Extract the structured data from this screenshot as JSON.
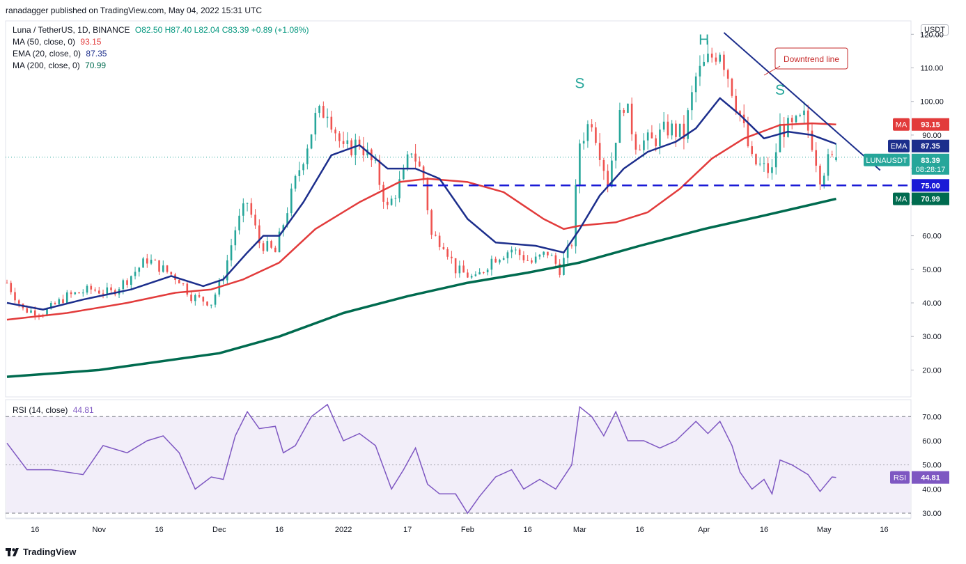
{
  "header": {
    "publisher": "ranadagger published on TradingView.com, May 04, 2022 15:31 UTC"
  },
  "legend": {
    "symbol": "Luna / TetherUS, 1D, BINANCE",
    "ohlc": {
      "o": "O82.50",
      "h": "H87.40",
      "l": "L82.04",
      "c": "C83.39",
      "chg": "+0.89 (+1.08%)"
    },
    "indicators": [
      {
        "label": "MA (50, close, 0)",
        "value": "93.15",
        "color": "#e23b3b"
      },
      {
        "label": "EMA (20, close, 0)",
        "value": "87.35",
        "color": "#1c2e8c"
      },
      {
        "label": "MA (200, close, 0)",
        "value": "70.99",
        "color": "#006b4f"
      }
    ]
  },
  "footer": {
    "brand": "TradingView"
  },
  "colors": {
    "up": "#26a69a",
    "down": "#ef5350",
    "ma50": "#e23b3b",
    "ema20": "#1c2e8c",
    "ma200": "#006b4f",
    "rsi": "#7e57c2",
    "trendline": "#1c2e8c",
    "support": "#1a1ad6"
  },
  "chart_data": [
    {
      "type": "candlestick",
      "title": "Luna / TetherUS, 1D, BINANCE",
      "unit": "USDT",
      "ylim": [
        12,
        124
      ],
      "y_ticks": [
        "20.00",
        "30.00",
        "40.00",
        "50.00",
        "60.00",
        "70.00",
        "80.00",
        "90.00",
        "100.00",
        "110.00",
        "120.00"
      ],
      "x_ticks": [
        "16",
        "Nov",
        "16",
        "Dec",
        "16",
        "2022",
        "17",
        "Feb",
        "16",
        "Mar",
        "16",
        "Apr",
        "16",
        "May",
        "16"
      ],
      "x_tick_dates": [
        "2021-10-16",
        "2021-11-01",
        "2021-11-16",
        "2021-12-01",
        "2021-12-16",
        "2022-01-01",
        "2022-01-17",
        "2022-02-01",
        "2022-02-16",
        "2022-03-01",
        "2022-03-16",
        "2022-04-01",
        "2022-04-16",
        "2022-05-01",
        "2022-05-16"
      ],
      "date_range": [
        "2021-10-09",
        "2022-05-22"
      ],
      "ohlc_anchors_close": [
        [
          "2021-10-09",
          46
        ],
        [
          "2021-10-13",
          38
        ],
        [
          "2021-10-18",
          37
        ],
        [
          "2021-10-24",
          42
        ],
        [
          "2021-10-30",
          44
        ],
        [
          "2021-11-04",
          43
        ],
        [
          "2021-11-08",
          47
        ],
        [
          "2021-11-13",
          53
        ],
        [
          "2021-11-17",
          50
        ],
        [
          "2021-11-21",
          47
        ],
        [
          "2021-11-24",
          42
        ],
        [
          "2021-11-29",
          40
        ],
        [
          "2021-12-02",
          48
        ],
        [
          "2021-12-05",
          62
        ],
        [
          "2021-12-08",
          70
        ],
        [
          "2021-12-11",
          58
        ],
        [
          "2021-12-15",
          55
        ],
        [
          "2021-12-18",
          68
        ],
        [
          "2021-12-21",
          80
        ],
        [
          "2021-12-25",
          95
        ],
        [
          "2021-12-28",
          98
        ],
        [
          "2022-01-01",
          85
        ],
        [
          "2022-01-05",
          88
        ],
        [
          "2022-01-09",
          80
        ],
        [
          "2022-01-12",
          68
        ],
        [
          "2022-01-16",
          78
        ],
        [
          "2022-01-18",
          86
        ],
        [
          "2022-01-21",
          77
        ],
        [
          "2022-01-23",
          60
        ],
        [
          "2022-01-26",
          58
        ],
        [
          "2022-01-29",
          50
        ],
        [
          "2022-02-03",
          47
        ],
        [
          "2022-02-07",
          53
        ],
        [
          "2022-02-12",
          56
        ],
        [
          "2022-02-17",
          52
        ],
        [
          "2022-02-21",
          55
        ],
        [
          "2022-02-24",
          50
        ],
        [
          "2022-02-27",
          58
        ],
        [
          "2022-03-01",
          88
        ],
        [
          "2022-03-04",
          95
        ],
        [
          "2022-03-08",
          76
        ],
        [
          "2022-03-10",
          90
        ],
        [
          "2022-03-12",
          100
        ],
        [
          "2022-03-15",
          88
        ],
        [
          "2022-03-19",
          88
        ],
        [
          "2022-03-23",
          92
        ],
        [
          "2022-03-27",
          90
        ],
        [
          "2022-03-30",
          107
        ],
        [
          "2022-04-02",
          112
        ],
        [
          "2022-04-05",
          116
        ],
        [
          "2022-04-08",
          104
        ],
        [
          "2022-04-10",
          96
        ],
        [
          "2022-04-13",
          82
        ],
        [
          "2022-04-16",
          80
        ],
        [
          "2022-04-18",
          79
        ],
        [
          "2022-04-20",
          92
        ],
        [
          "2022-04-23",
          92
        ],
        [
          "2022-04-26",
          95
        ],
        [
          "2022-04-28",
          88
        ],
        [
          "2022-04-30",
          78
        ],
        [
          "2022-05-02",
          82
        ],
        [
          "2022-05-04",
          83.39
        ]
      ],
      "series": [
        {
          "name": "MA (50, close, 0)",
          "last": 93.15,
          "points": [
            [
              "2021-10-09",
              35
            ],
            [
              "2021-10-24",
              37
            ],
            [
              "2021-11-08",
              40
            ],
            [
              "2021-11-20",
              43
            ],
            [
              "2021-11-29",
              44
            ],
            [
              "2021-12-07",
              47
            ],
            [
              "2021-12-16",
              52
            ],
            [
              "2021-12-25",
              62
            ],
            [
              "2022-01-05",
              70
            ],
            [
              "2022-01-15",
              76
            ],
            [
              "2022-01-22",
              77
            ],
            [
              "2022-02-01",
              76
            ],
            [
              "2022-02-10",
              73
            ],
            [
              "2022-02-20",
              65
            ],
            [
              "2022-02-25",
              62
            ],
            [
              "2022-03-01",
              63
            ],
            [
              "2022-03-10",
              64
            ],
            [
              "2022-03-18",
              67
            ],
            [
              "2022-03-26",
              74
            ],
            [
              "2022-04-03",
              83
            ],
            [
              "2022-04-11",
              89
            ],
            [
              "2022-04-20",
              93
            ],
            [
              "2022-04-28",
              93.5
            ],
            [
              "2022-05-04",
              93.15
            ]
          ]
        },
        {
          "name": "EMA (20, close, 0)",
          "last": 87.35,
          "points": [
            [
              "2021-10-09",
              40
            ],
            [
              "2021-10-18",
              38
            ],
            [
              "2021-10-28",
              41
            ],
            [
              "2021-11-09",
              44
            ],
            [
              "2021-11-19",
              48
            ],
            [
              "2021-11-27",
              45
            ],
            [
              "2021-12-02",
              47
            ],
            [
              "2021-12-08",
              55
            ],
            [
              "2021-12-12",
              60
            ],
            [
              "2021-12-16",
              60
            ],
            [
              "2021-12-22",
              70
            ],
            [
              "2021-12-29",
              84
            ],
            [
              "2022-01-05",
              87
            ],
            [
              "2022-01-12",
              80
            ],
            [
              "2022-01-19",
              80
            ],
            [
              "2022-01-25",
              77
            ],
            [
              "2022-02-01",
              65
            ],
            [
              "2022-02-08",
              58
            ],
            [
              "2022-02-18",
              57
            ],
            [
              "2022-02-25",
              55
            ],
            [
              "2022-03-01",
              62
            ],
            [
              "2022-03-06",
              72
            ],
            [
              "2022-03-12",
              80
            ],
            [
              "2022-03-18",
              85
            ],
            [
              "2022-03-25",
              88
            ],
            [
              "2022-03-30",
              92
            ],
            [
              "2022-04-05",
              101
            ],
            [
              "2022-04-10",
              96
            ],
            [
              "2022-04-16",
              89
            ],
            [
              "2022-04-22",
              91
            ],
            [
              "2022-04-28",
              90
            ],
            [
              "2022-05-04",
              87.35
            ]
          ]
        },
        {
          "name": "MA (200, close, 0)",
          "last": 70.99,
          "points": [
            [
              "2021-10-09",
              18
            ],
            [
              "2021-11-01",
              20
            ],
            [
              "2021-12-01",
              25
            ],
            [
              "2021-12-16",
              30
            ],
            [
              "2022-01-01",
              37
            ],
            [
              "2022-01-17",
              42
            ],
            [
              "2022-02-01",
              46
            ],
            [
              "2022-02-16",
              49
            ],
            [
              "2022-03-01",
              52
            ],
            [
              "2022-03-16",
              57
            ],
            [
              "2022-04-01",
              62
            ],
            [
              "2022-04-16",
              66
            ],
            [
              "2022-05-04",
              70.99
            ]
          ]
        }
      ],
      "annotations": [
        {
          "text": "S",
          "date": "2022-03-01",
          "price": 104
        },
        {
          "text": "H",
          "date": "2022-04-01",
          "price": 117
        },
        {
          "text": "S",
          "date": "2022-04-20",
          "price": 102
        },
        {
          "text": "Downtrend line",
          "type": "callout"
        }
      ],
      "trendline": {
        "label": "Downtrend line",
        "from": [
          "2022-04-06",
          120.5
        ],
        "to": [
          "2022-05-15",
          79.5
        ]
      },
      "support_line": {
        "label": "75.00",
        "price": 75,
        "from": "2022-01-17"
      },
      "price_labels": [
        {
          "tag": "MA",
          "value": "93.15"
        },
        {
          "tag": "EMA",
          "value": "87.35"
        },
        {
          "tag": "LUNAUSDT",
          "value": "83.39",
          "countdown": "08:28:17"
        },
        {
          "tag": "",
          "value": "75.00"
        },
        {
          "tag": "MA",
          "value": "70.99"
        }
      ]
    },
    {
      "type": "line",
      "title": "RSI (14, close)",
      "last": 44.81,
      "ylim": [
        28,
        77
      ],
      "y_ticks": [
        "30.00",
        "40.00",
        "50.00",
        "60.00",
        "70.00"
      ],
      "band": [
        30,
        70
      ],
      "label": "RSI",
      "label_value": "44.81",
      "points": [
        [
          "2021-10-09",
          59
        ],
        [
          "2021-10-14",
          48
        ],
        [
          "2021-10-20",
          48
        ],
        [
          "2021-10-28",
          46
        ],
        [
          "2021-11-02",
          58
        ],
        [
          "2021-11-08",
          55
        ],
        [
          "2021-11-13",
          60
        ],
        [
          "2021-11-17",
          62
        ],
        [
          "2021-11-21",
          55
        ],
        [
          "2021-11-25",
          40
        ],
        [
          "2021-11-29",
          45
        ],
        [
          "2021-12-02",
          44
        ],
        [
          "2021-12-05",
          62
        ],
        [
          "2021-12-08",
          72
        ],
        [
          "2021-12-11",
          65
        ],
        [
          "2021-12-15",
          66
        ],
        [
          "2021-12-17",
          55
        ],
        [
          "2021-12-20",
          58
        ],
        [
          "2021-12-24",
          70
        ],
        [
          "2021-12-28",
          75
        ],
        [
          "2022-01-01",
          60
        ],
        [
          "2022-01-05",
          63
        ],
        [
          "2022-01-09",
          58
        ],
        [
          "2022-01-13",
          40
        ],
        [
          "2022-01-16",
          48
        ],
        [
          "2022-01-19",
          57
        ],
        [
          "2022-01-22",
          42
        ],
        [
          "2022-01-25",
          38
        ],
        [
          "2022-01-29",
          38
        ],
        [
          "2022-02-01",
          30
        ],
        [
          "2022-02-04",
          37
        ],
        [
          "2022-02-08",
          45
        ],
        [
          "2022-02-12",
          48
        ],
        [
          "2022-02-15",
          40
        ],
        [
          "2022-02-19",
          44
        ],
        [
          "2022-02-23",
          40
        ],
        [
          "2022-02-27",
          50
        ],
        [
          "2022-03-01",
          74
        ],
        [
          "2022-03-04",
          70
        ],
        [
          "2022-03-07",
          62
        ],
        [
          "2022-03-10",
          72
        ],
        [
          "2022-03-13",
          60
        ],
        [
          "2022-03-17",
          60
        ],
        [
          "2022-03-21",
          57
        ],
        [
          "2022-03-25",
          60
        ],
        [
          "2022-03-30",
          68
        ],
        [
          "2022-04-02",
          63
        ],
        [
          "2022-04-05",
          68
        ],
        [
          "2022-04-08",
          58
        ],
        [
          "2022-04-10",
          47
        ],
        [
          "2022-04-13",
          40
        ],
        [
          "2022-04-16",
          44
        ],
        [
          "2022-04-18",
          38
        ],
        [
          "2022-04-20",
          52
        ],
        [
          "2022-04-23",
          50
        ],
        [
          "2022-04-27",
          46
        ],
        [
          "2022-04-30",
          39
        ],
        [
          "2022-05-03",
          45
        ],
        [
          "2022-05-04",
          44.81
        ]
      ]
    }
  ]
}
